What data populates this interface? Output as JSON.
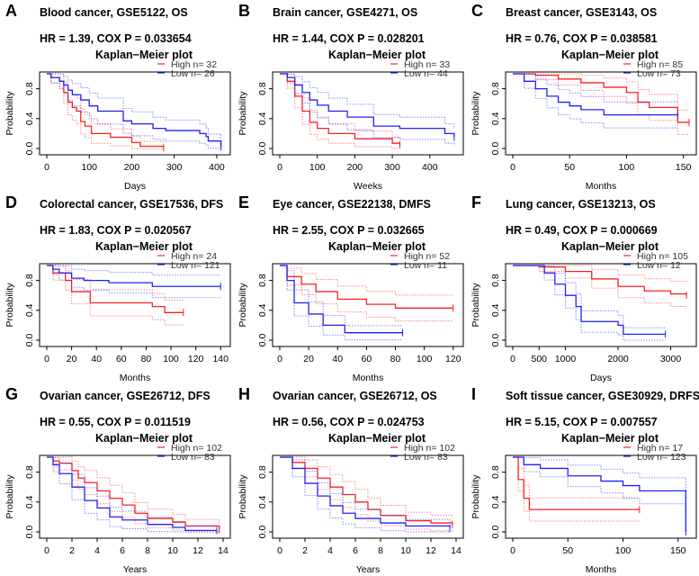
{
  "chart_data": [
    {
      "type": "line",
      "letter": "A",
      "title": "Blood cancer, GSE5122, OS",
      "stat": "HR = 1.39, COX P =   0.033654",
      "subtitle": "Kaplan−Meier plot",
      "xlabel": "Days",
      "ylabel": "Probability",
      "xlim": [
        0,
        415
      ],
      "xticks": [
        0,
        100,
        200,
        300,
        400
      ],
      "yticks": [
        "0.0",
        "0.4",
        "0.8"
      ],
      "legend": [
        "High  n= 32",
        "Low   n= 26"
      ],
      "series": [
        {
          "name": "High",
          "color": "#ff2020",
          "points": [
            [
              0,
              1
            ],
            [
              10,
              0.95
            ],
            [
              30,
              0.9
            ],
            [
              40,
              0.75
            ],
            [
              50,
              0.62
            ],
            [
              60,
              0.55
            ],
            [
              70,
              0.5
            ],
            [
              80,
              0.36
            ],
            [
              90,
              0.3
            ],
            [
              105,
              0.2
            ],
            [
              150,
              0.15
            ],
            [
              200,
              0.08
            ],
            [
              220,
              0.03
            ],
            [
              275,
              0.01
            ]
          ]
        },
        {
          "name": "Low",
          "color": "#2020ff",
          "points": [
            [
              0,
              1
            ],
            [
              10,
              0.95
            ],
            [
              30,
              0.9
            ],
            [
              40,
              0.85
            ],
            [
              50,
              0.78
            ],
            [
              60,
              0.72
            ],
            [
              80,
              0.65
            ],
            [
              100,
              0.57
            ],
            [
              120,
              0.5
            ],
            [
              180,
              0.37
            ],
            [
              200,
              0.33
            ],
            [
              250,
              0.27
            ],
            [
              280,
              0.24
            ],
            [
              360,
              0.2
            ],
            [
              375,
              0.16
            ],
            [
              380,
              0.1
            ],
            [
              410,
              0.02
            ]
          ]
        }
      ]
    },
    {
      "type": "line",
      "letter": "B",
      "title": "Brain cancer, GSE4271, OS",
      "stat": "HR = 1.44, COX P = 0.028201",
      "subtitle": "Kaplan−Meier plot",
      "xlabel": "Weeks",
      "ylabel": "Probability",
      "xlim": [
        0,
        470
      ],
      "xticks": [
        0,
        100,
        200,
        300,
        400
      ],
      "yticks": [
        "0.0",
        "0.4",
        "0.8"
      ],
      "legend": [
        "High  n= 33",
        "Low   n= 44"
      ],
      "series": [
        {
          "name": "High",
          "color": "#ff2020",
          "points": [
            [
              0,
              1
            ],
            [
              20,
              0.9
            ],
            [
              40,
              0.7
            ],
            [
              60,
              0.5
            ],
            [
              80,
              0.35
            ],
            [
              100,
              0.27
            ],
            [
              130,
              0.2
            ],
            [
              200,
              0.13
            ],
            [
              300,
              0.07
            ],
            [
              320,
              0.05
            ]
          ]
        },
        {
          "name": "Low",
          "color": "#2020ff",
          "points": [
            [
              0,
              1
            ],
            [
              20,
              0.95
            ],
            [
              40,
              0.85
            ],
            [
              60,
              0.75
            ],
            [
              80,
              0.65
            ],
            [
              100,
              0.58
            ],
            [
              130,
              0.5
            ],
            [
              180,
              0.42
            ],
            [
              250,
              0.3
            ],
            [
              320,
              0.27
            ],
            [
              440,
              0.2
            ],
            [
              465,
              0.15
            ]
          ]
        }
      ]
    },
    {
      "type": "line",
      "letter": "C",
      "title": "Breast cancer, GSE3143, OS",
      "stat": "HR = 0.76, COX P = 0.038581",
      "subtitle": "Kaplan−Meier plot",
      "xlabel": "Months",
      "ylabel": "Probability",
      "xlim": [
        0,
        155
      ],
      "xticks": [
        0,
        50,
        100,
        150
      ],
      "yticks": [
        "0.0",
        "0.4",
        "0.8"
      ],
      "legend": [
        "High  n= 85",
        "Low   n= 73"
      ],
      "series": [
        {
          "name": "High",
          "color": "#ff2020",
          "points": [
            [
              0,
              1
            ],
            [
              20,
              0.98
            ],
            [
              40,
              0.93
            ],
            [
              60,
              0.88
            ],
            [
              80,
              0.82
            ],
            [
              100,
              0.75
            ],
            [
              110,
              0.62
            ],
            [
              120,
              0.55
            ],
            [
              145,
              0.35
            ],
            [
              155,
              0.35
            ]
          ]
        },
        {
          "name": "Low",
          "color": "#2020ff",
          "points": [
            [
              0,
              1
            ],
            [
              10,
              0.9
            ],
            [
              20,
              0.8
            ],
            [
              30,
              0.7
            ],
            [
              40,
              0.62
            ],
            [
              50,
              0.57
            ],
            [
              60,
              0.52
            ],
            [
              80,
              0.45
            ],
            [
              145,
              0.45
            ]
          ]
        }
      ]
    },
    {
      "type": "line",
      "letter": "D",
      "title": "Colorectal cancer, GSE17536, DFS",
      "stat": "HR = 1.83, COX P = 0.020567",
      "subtitle": "Kaplan−Meier plot",
      "xlabel": "Months",
      "ylabel": "Probability",
      "xlim": [
        0,
        142
      ],
      "xticks": [
        0,
        20,
        40,
        60,
        80,
        100,
        120,
        140
      ],
      "yticks": [
        "0.0",
        "0.4",
        "0.8"
      ],
      "legend": [
        "High  n= 24",
        "Low   n= 121"
      ],
      "series": [
        {
          "name": "High",
          "color": "#ff2020",
          "points": [
            [
              0,
              1
            ],
            [
              5,
              0.9
            ],
            [
              15,
              0.8
            ],
            [
              20,
              0.65
            ],
            [
              35,
              0.5
            ],
            [
              85,
              0.45
            ],
            [
              95,
              0.37
            ],
            [
              110,
              0.37
            ]
          ]
        },
        {
          "name": "Low",
          "color": "#2020ff",
          "points": [
            [
              0,
              1
            ],
            [
              5,
              0.95
            ],
            [
              10,
              0.9
            ],
            [
              20,
              0.83
            ],
            [
              30,
              0.8
            ],
            [
              50,
              0.77
            ],
            [
              85,
              0.72
            ],
            [
              140,
              0.72
            ]
          ]
        }
      ]
    },
    {
      "type": "line",
      "letter": "E",
      "title": "Eye cancer, GSE22138, DMFS",
      "stat": "HR = 2.55, COX P = 0.032665",
      "subtitle": "Kaplan−Meier plot",
      "xlabel": "Months",
      "ylabel": "Probability",
      "xlim": [
        0,
        122
      ],
      "xticks": [
        0,
        20,
        40,
        60,
        80,
        100,
        120
      ],
      "yticks": [
        "0.0",
        "0.4",
        "0.8"
      ],
      "legend": [
        "High  n= 52",
        "Low   n= 11"
      ],
      "series": [
        {
          "name": "High",
          "color": "#ff2020",
          "points": [
            [
              0,
              1
            ],
            [
              5,
              0.85
            ],
            [
              15,
              0.75
            ],
            [
              25,
              0.65
            ],
            [
              40,
              0.55
            ],
            [
              60,
              0.48
            ],
            [
              80,
              0.43
            ],
            [
              120,
              0.43
            ]
          ]
        },
        {
          "name": "Low",
          "color": "#2020ff",
          "points": [
            [
              0,
              1
            ],
            [
              5,
              0.8
            ],
            [
              10,
              0.5
            ],
            [
              20,
              0.35
            ],
            [
              30,
              0.2
            ],
            [
              45,
              0.1
            ],
            [
              85,
              0.1
            ]
          ]
        }
      ]
    },
    {
      "type": "line",
      "letter": "F",
      "title": "Lung cancer, GSE13213, OS",
      "stat": "HR = 0.49, COX P = 0.000669",
      "subtitle": "Kaplan−Meier plot",
      "xlabel": "Days",
      "ylabel": "Probability",
      "xlim": [
        0,
        3350
      ],
      "xticks": [
        0,
        500,
        1000,
        2000,
        3000
      ],
      "yticks": [
        "0.0",
        "0.4",
        "0.8"
      ],
      "legend": [
        "High  n= 105",
        "Low   n= 12"
      ],
      "series": [
        {
          "name": "High",
          "color": "#ff2020",
          "points": [
            [
              0,
              1
            ],
            [
              500,
              0.98
            ],
            [
              1000,
              0.92
            ],
            [
              1500,
              0.82
            ],
            [
              2000,
              0.72
            ],
            [
              2500,
              0.66
            ],
            [
              3000,
              0.62
            ],
            [
              3300,
              0.6
            ]
          ]
        },
        {
          "name": "Low",
          "color": "#2020ff",
          "points": [
            [
              0,
              1
            ],
            [
              600,
              0.9
            ],
            [
              800,
              0.75
            ],
            [
              1000,
              0.6
            ],
            [
              1200,
              0.45
            ],
            [
              1300,
              0.25
            ],
            [
              2000,
              0.2
            ],
            [
              2100,
              0.08
            ],
            [
              2900,
              0.08
            ]
          ]
        }
      ]
    },
    {
      "type": "line",
      "letter": "G",
      "title": "Ovarian cancer, GSE26712, DFS",
      "stat": "HR = 0.55, COX P = 0.011519",
      "subtitle": "Kaplan−Meier plot",
      "xlabel": "Years",
      "ylabel": "Probability",
      "xlim": [
        0,
        14
      ],
      "xticks": [
        0,
        2,
        4,
        6,
        8,
        10,
        12,
        14
      ],
      "yticks": [
        "0.0",
        "0.4",
        "0.8"
      ],
      "legend": [
        "High  n= 102",
        "Low   n= 83"
      ],
      "series": [
        {
          "name": "High",
          "color": "#ff2020",
          "points": [
            [
              0,
              1
            ],
            [
              0.5,
              0.95
            ],
            [
              1,
              0.92
            ],
            [
              2,
              0.82
            ],
            [
              2.5,
              0.72
            ],
            [
              3,
              0.66
            ],
            [
              4,
              0.55
            ],
            [
              5,
              0.45
            ],
            [
              6,
              0.36
            ],
            [
              7,
              0.25
            ],
            [
              8,
              0.18
            ],
            [
              10,
              0.13
            ],
            [
              11,
              0.08
            ],
            [
              13.7,
              0.03
            ]
          ]
        },
        {
          "name": "Low",
          "color": "#2020ff",
          "points": [
            [
              0,
              1
            ],
            [
              0.5,
              0.9
            ],
            [
              1,
              0.78
            ],
            [
              2,
              0.6
            ],
            [
              3,
              0.42
            ],
            [
              4,
              0.32
            ],
            [
              5,
              0.2
            ],
            [
              6,
              0.16
            ],
            [
              8,
              0.1
            ],
            [
              10,
              0.06
            ],
            [
              11,
              0.02
            ],
            [
              13.5,
              0.02
            ]
          ]
        }
      ]
    },
    {
      "type": "line",
      "letter": "H",
      "title": "Ovarian cancer, GSE26712, OS",
      "stat": "HR = 0.56, COX P = 0.024753",
      "subtitle": "Kaplan−Meier plot",
      "xlabel": "Years",
      "ylabel": "Probability",
      "xlim": [
        0,
        14
      ],
      "xticks": [
        0,
        2,
        4,
        6,
        8,
        10,
        12,
        14
      ],
      "yticks": [
        "0.0",
        "0.4",
        "0.8"
      ],
      "legend": [
        "High  n= 102",
        "Low   n= 83"
      ],
      "series": [
        {
          "name": "High",
          "color": "#ff2020",
          "points": [
            [
              0,
              1
            ],
            [
              1,
              0.93
            ],
            [
              2,
              0.85
            ],
            [
              3,
              0.72
            ],
            [
              4,
              0.6
            ],
            [
              5,
              0.5
            ],
            [
              6,
              0.4
            ],
            [
              7,
              0.3
            ],
            [
              8,
              0.22
            ],
            [
              10,
              0.15
            ],
            [
              12,
              0.12
            ],
            [
              13.7,
              0.1
            ]
          ]
        },
        {
          "name": "Low",
          "color": "#2020ff",
          "points": [
            [
              0,
              1
            ],
            [
              1,
              0.85
            ],
            [
              2,
              0.65
            ],
            [
              3,
              0.48
            ],
            [
              4,
              0.35
            ],
            [
              5,
              0.25
            ],
            [
              6,
              0.18
            ],
            [
              8,
              0.12
            ],
            [
              10,
              0.08
            ],
            [
              13.5,
              0.05
            ]
          ]
        }
      ]
    },
    {
      "type": "line",
      "letter": "I",
      "title": "Soft tissue cancer, GSE30929, DRFS",
      "stat": "HR = 5.15, COX P = 0.007557",
      "subtitle": "Kaplan−Meier plot",
      "xlabel": "Months",
      "ylabel": "Probability",
      "xlim": [
        0,
        160
      ],
      "xticks": [
        0,
        50,
        100,
        150
      ],
      "yticks": [
        "0.0",
        "0.4",
        "0.8"
      ],
      "legend": [
        "High  n= 17",
        "Low   n= 123"
      ],
      "series": [
        {
          "name": "High",
          "color": "#ff2020",
          "points": [
            [
              0,
              1
            ],
            [
              5,
              0.7
            ],
            [
              10,
              0.45
            ],
            [
              15,
              0.3
            ],
            [
              115,
              0.3
            ]
          ]
        },
        {
          "name": "Low",
          "color": "#2020ff",
          "points": [
            [
              0,
              1
            ],
            [
              10,
              0.9
            ],
            [
              25,
              0.85
            ],
            [
              50,
              0.75
            ],
            [
              80,
              0.68
            ],
            [
              100,
              0.62
            ],
            [
              115,
              0.55
            ],
            [
              155,
              0.55
            ],
            [
              157,
              0
            ]
          ]
        }
      ]
    }
  ]
}
